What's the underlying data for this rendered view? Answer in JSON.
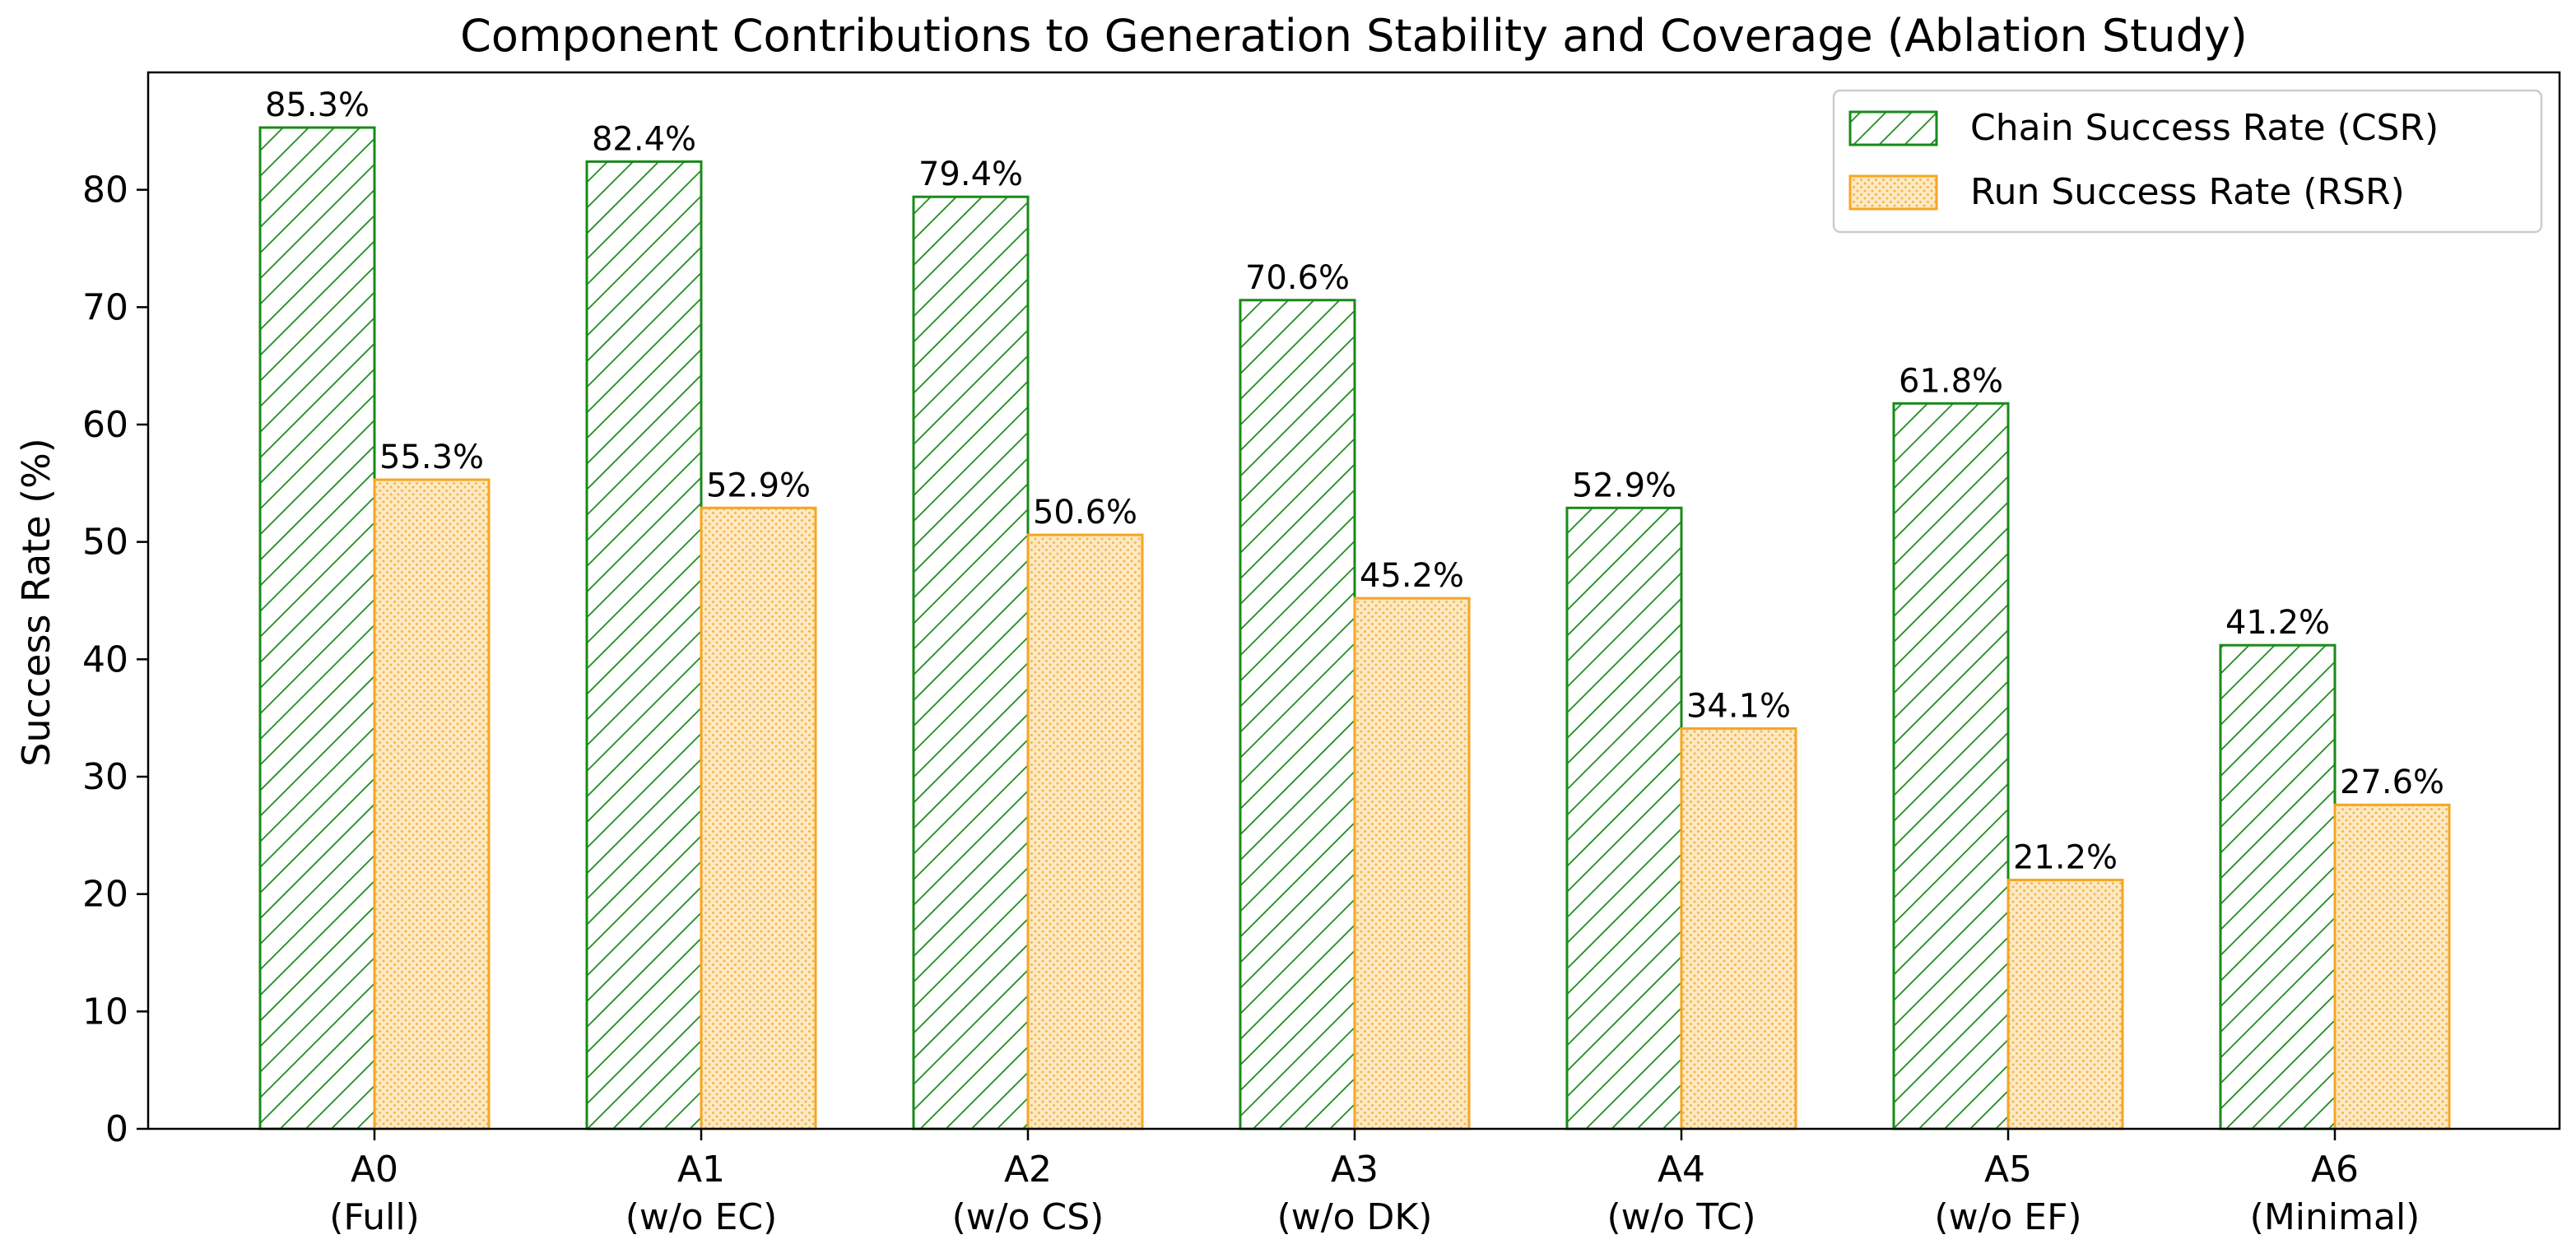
{
  "chart_data": {
    "type": "bar",
    "title": "Component Contributions to Generation Stability and Coverage (Ablation Study)",
    "xlabel": "",
    "ylabel": "Success Rate (%)",
    "ylim": [
      0,
      90
    ],
    "yticks": [
      0,
      10,
      20,
      30,
      40,
      50,
      60,
      70,
      80
    ],
    "grid": false,
    "legend_position": "top-right",
    "categories": [
      {
        "code": "A0",
        "desc": "(Full)"
      },
      {
        "code": "A1",
        "desc": "(w/o EC)"
      },
      {
        "code": "A2",
        "desc": "(w/o CS)"
      },
      {
        "code": "A3",
        "desc": "(w/o DK)"
      },
      {
        "code": "A4",
        "desc": "(w/o TC)"
      },
      {
        "code": "A5",
        "desc": "(w/o EF)"
      },
      {
        "code": "A6",
        "desc": "(Minimal)"
      }
    ],
    "series": [
      {
        "name": "Chain Success Rate (CSR)",
        "values": [
          85.3,
          82.4,
          79.4,
          70.6,
          52.9,
          61.8,
          41.2
        ],
        "labels": [
          "85.3%",
          "82.4%",
          "79.4%",
          "70.6%",
          "52.9%",
          "61.8%",
          "41.2%"
        ],
        "color": "#1a8a1a",
        "pattern": "diagonal-hatch"
      },
      {
        "name": "Run Success Rate (RSR)",
        "values": [
          55.3,
          52.9,
          50.6,
          45.2,
          34.1,
          21.2,
          27.6
        ],
        "labels": [
          "55.3%",
          "52.9%",
          "50.6%",
          "45.2%",
          "34.1%",
          "21.2%",
          "27.6%"
        ],
        "color": "#f5a623",
        "fill": "#fde9c4",
        "pattern": "dots"
      }
    ]
  }
}
